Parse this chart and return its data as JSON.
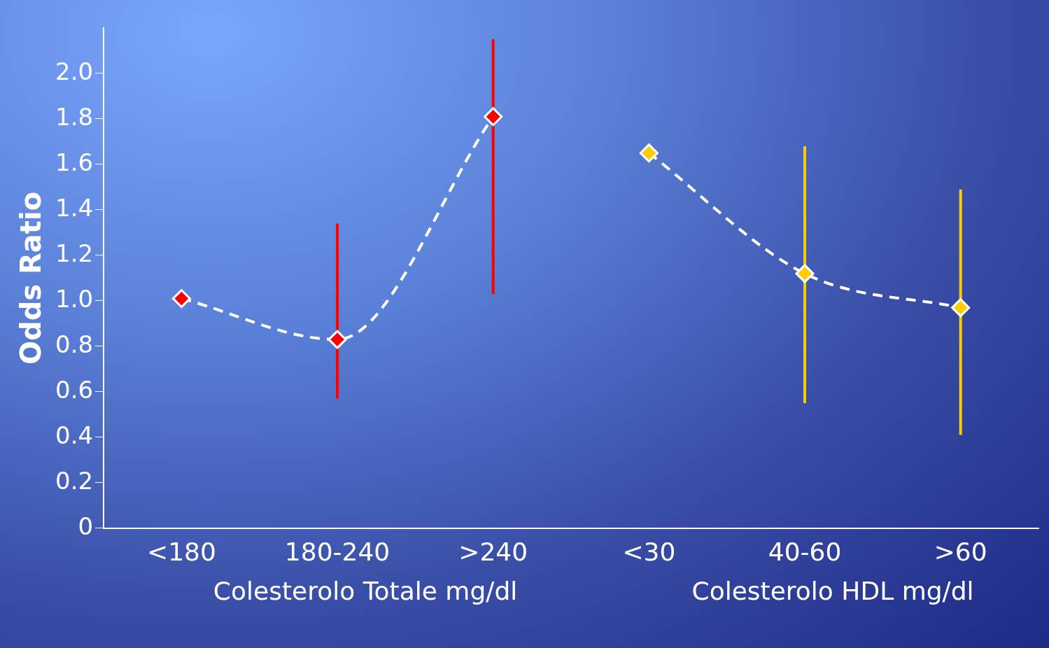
{
  "chart_data": {
    "type": "line",
    "ylabel": "Odds Ratio",
    "xlabel": "Colesterolo Totale mg/dl",
    "annotations": [
      "Colesterolo HDL mg/dl"
    ],
    "categories": [
      "<180",
      "180-240",
      ">240",
      "<30",
      "40-60",
      ">60"
    ],
    "series": [
      {
        "color": "#ff0000",
        "values": [
          1.01,
          0.83,
          1.81,
          null,
          null,
          null
        ],
        "errors": [
          null,
          [
            0.57,
            1.34
          ],
          [
            1.03,
            2.15
          ],
          null,
          null,
          null
        ],
        "line_style": "dashed"
      },
      {
        "color": "#ffcc00",
        "values": [
          null,
          null,
          null,
          1.65,
          1.12,
          0.97
        ],
        "errors": [
          null,
          null,
          null,
          null,
          [
            0.55,
            1.68
          ],
          [
            0.41,
            1.49
          ]
        ],
        "line_style": "dashed"
      }
    ],
    "ylim": [
      0,
      2.2
    ],
    "yticks": [
      0,
      0.2,
      0.4,
      0.6,
      0.8,
      {
        "value": 1,
        "label": "1.0"
      },
      1.2,
      1.4,
      1.6,
      1.8,
      {
        "value": 2,
        "label": "2.0"
      }
    ],
    "grid": false,
    "legend": false,
    "marker": "diamond"
  }
}
